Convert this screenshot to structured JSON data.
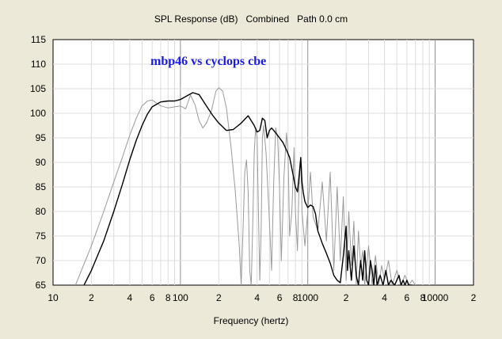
{
  "chart_data": {
    "type": "line",
    "title": "SPL Response (dB)   Combined   Path 0.0 cm",
    "xlabel": "Frequency (hertz)",
    "ylabel": "",
    "x_scale": "log",
    "xlim": [
      10,
      20000
    ],
    "ylim": [
      65,
      115
    ],
    "grid": true,
    "annotation": "mbp46 vs cyclops cbe",
    "annotation_color": "#1a1ae6",
    "x_ticks": [
      {
        "value": 10,
        "label": "10"
      },
      {
        "value": 20,
        "label": "2"
      },
      {
        "value": 40,
        "label": "4"
      },
      {
        "value": 60,
        "label": "6"
      },
      {
        "value": 80,
        "label": "8"
      },
      {
        "value": 100,
        "label": "100"
      },
      {
        "value": 200,
        "label": "2"
      },
      {
        "value": 400,
        "label": "4"
      },
      {
        "value": 600,
        "label": "6"
      },
      {
        "value": 800,
        "label": "8"
      },
      {
        "value": 1000,
        "label": "1000"
      },
      {
        "value": 2000,
        "label": "2"
      },
      {
        "value": 4000,
        "label": "4"
      },
      {
        "value": 6000,
        "label": "6"
      },
      {
        "value": 8000,
        "label": "8"
      },
      {
        "value": 10000,
        "label": "10000"
      },
      {
        "value": 20000,
        "label": "2"
      }
    ],
    "y_ticks": [
      {
        "value": 115,
        "label": "115"
      },
      {
        "value": 110,
        "label": "110"
      },
      {
        "value": 105,
        "label": "105"
      },
      {
        "value": 100,
        "label": "100"
      },
      {
        "value": 95,
        "label": "95"
      },
      {
        "value": 90,
        "label": "90"
      },
      {
        "value": 85,
        "label": "85"
      },
      {
        "value": 80,
        "label": "80"
      },
      {
        "value": 75,
        "label": "75"
      },
      {
        "value": 70,
        "label": "70"
      },
      {
        "value": 65,
        "label": "65"
      }
    ],
    "series": [
      {
        "color": "#000000",
        "x": [
          17.5,
          20,
          25,
          30,
          35,
          40,
          45,
          50,
          55,
          60,
          70,
          80,
          90,
          100,
          110,
          125,
          140,
          160,
          180,
          200,
          230,
          260,
          300,
          340,
          380,
          400,
          420,
          440,
          460,
          480,
          500,
          520,
          540,
          560,
          600,
          640,
          680,
          720,
          760,
          800,
          830,
          860,
          880,
          900,
          920,
          950,
          1000,
          1050,
          1100,
          1150,
          1200,
          1300,
          1400,
          1500,
          1600,
          1700,
          1800,
          1900,
          2000,
          2050,
          2100,
          2200,
          2300,
          2400,
          2500,
          2600,
          2700,
          2800,
          2900,
          3000,
          3100,
          3200,
          3300,
          3400,
          3500,
          3700,
          3900,
          4100,
          4300,
          4500,
          4800,
          5000,
          5200,
          5400,
          5600,
          5800,
          6000,
          6200,
          6400,
          6600
        ],
        "y": [
          65,
          68,
          74,
          80,
          85.5,
          90.5,
          94.5,
          97.5,
          99.8,
          101.3,
          102.3,
          102.5,
          102.5,
          102.8,
          103.4,
          104.2,
          103.8,
          101.5,
          99.5,
          98,
          96.5,
          96.7,
          98,
          99.5,
          97.5,
          96.2,
          96.5,
          99,
          98.5,
          95,
          96.5,
          97,
          96.5,
          96,
          95,
          94,
          92.5,
          91,
          88,
          85,
          84,
          88,
          91,
          86,
          84,
          82,
          80.8,
          81.3,
          81,
          79.5,
          76,
          73.5,
          71.5,
          69.5,
          67,
          66,
          65.5,
          71,
          77,
          68,
          72,
          66,
          73,
          67,
          65,
          70,
          66,
          72,
          66,
          65,
          70,
          68,
          65,
          69,
          65,
          67,
          65,
          68,
          65,
          66,
          65,
          66,
          67,
          65,
          66,
          65,
          66,
          65,
          65,
          65
        ]
      },
      {
        "color": "#9a9a9a",
        "x": [
          15,
          17,
          20,
          25,
          30,
          35,
          40,
          45,
          50,
          55,
          60,
          70,
          80,
          90,
          100,
          110,
          120,
          130,
          140,
          150,
          160,
          175,
          190,
          200,
          215,
          230,
          250,
          270,
          290,
          300,
          310,
          320,
          330,
          340,
          350,
          360,
          370,
          380,
          390,
          400,
          410,
          420,
          430,
          440,
          450,
          470,
          500,
          520,
          540,
          560,
          580,
          600,
          620,
          650,
          680,
          700,
          720,
          750,
          780,
          800,
          830,
          850,
          880,
          900,
          950,
          1000,
          1050,
          1100,
          1200,
          1300,
          1400,
          1500,
          1600,
          1700,
          1800,
          1900,
          2000,
          2100,
          2200,
          2300,
          2400,
          2500,
          2600,
          2700,
          2800,
          3000,
          3200,
          3400,
          3600,
          3800,
          4000,
          4300,
          4600,
          5000,
          5400,
          5800,
          6200,
          6600,
          7000
        ],
        "y": [
          65,
          68.5,
          73,
          80,
          86,
          91,
          95.5,
          99,
          101.5,
          102.5,
          102.7,
          101.5,
          101.1,
          101.3,
          101.5,
          100.9,
          103.7,
          101.8,
          98.5,
          97,
          98,
          100.5,
          104.5,
          105.2,
          104.5,
          101,
          93,
          84,
          73,
          65,
          76,
          88,
          90.5,
          84,
          68,
          65,
          78,
          92,
          97,
          95,
          80,
          66,
          76,
          95,
          97.5,
          92,
          78,
          68,
          86,
          97,
          95,
          85,
          70,
          87,
          96,
          92,
          75,
          80,
          93,
          80,
          72,
          84,
          91,
          80,
          73,
          80,
          88,
          79,
          76,
          86,
          74,
          88,
          68,
          85,
          70,
          83,
          66,
          80,
          69,
          78,
          65,
          76,
          69,
          72,
          65,
          73,
          65,
          71,
          65,
          69,
          66,
          70,
          65,
          68,
          65,
          67,
          65,
          66,
          65
        ]
      }
    ]
  }
}
